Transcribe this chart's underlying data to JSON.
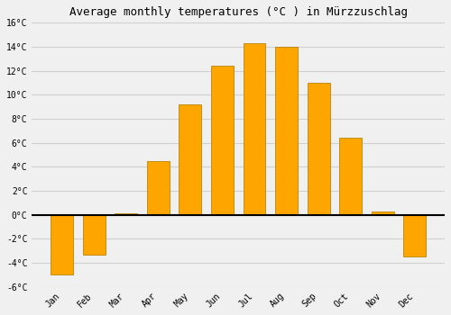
{
  "title": "Average monthly temperatures (°C ) in Mürzzuschlag",
  "months": [
    "Jan",
    "Feb",
    "Mar",
    "Apr",
    "May",
    "Jun",
    "Jul",
    "Aug",
    "Sep",
    "Oct",
    "Nov",
    "Dec"
  ],
  "values": [
    -5.0,
    -3.3,
    0.1,
    4.5,
    9.2,
    12.4,
    14.3,
    14.0,
    11.0,
    6.4,
    0.3,
    -3.5
  ],
  "bar_color": "#FFA500",
  "bar_edge_color": "#B8860B",
  "ylim": [
    -6,
    16
  ],
  "yticks": [
    -6,
    -4,
    -2,
    0,
    2,
    4,
    6,
    8,
    10,
    12,
    14,
    16
  ],
  "background_color": "#f0f0f0",
  "grid_color": "#d0d0d0",
  "title_fontsize": 9,
  "tick_fontsize": 7,
  "zero_line_color": "#000000",
  "bar_width": 0.7,
  "figsize": [
    5.0,
    3.5
  ],
  "dpi": 100
}
